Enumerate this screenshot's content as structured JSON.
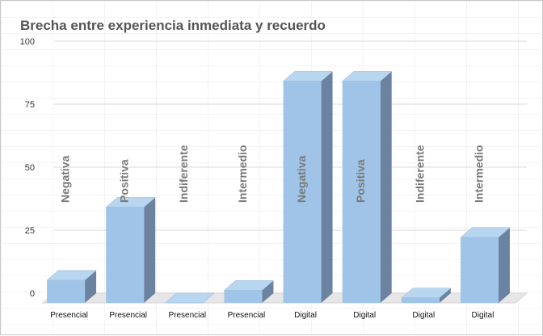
{
  "chart_data": {
    "type": "bar",
    "title": "Brecha entre experiencia inmediata y recuerdo",
    "xlabel": "",
    "ylabel": "",
    "ylim": [
      0,
      100
    ],
    "yticks": [
      0,
      25,
      50,
      75,
      100
    ],
    "grid": true,
    "legend": "none",
    "three_d": true,
    "categories": [
      "Presencial",
      "Presencial",
      "Presencial",
      "Presencial",
      "Digital",
      "Digital",
      "Digital",
      "Digital"
    ],
    "labels": [
      "Negativa",
      "Positiva",
      "Indiferente",
      "Intermedio",
      "Negativa",
      "Positiva",
      "Indiferente",
      "Intermedio"
    ],
    "values": [
      9,
      38,
      0,
      5,
      88,
      88,
      2,
      26
    ],
    "colors": {
      "front": "#9fc4e8",
      "top": "#b9d6f1",
      "side": "#6b83a0",
      "label": "#7a7a7a"
    }
  }
}
